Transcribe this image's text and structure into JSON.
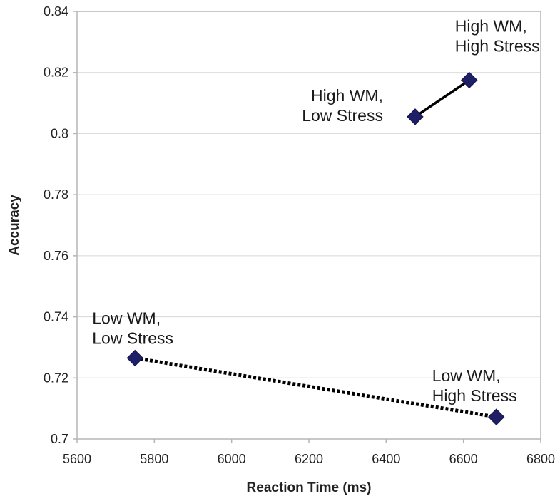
{
  "chart_data": {
    "type": "scatter",
    "title": "",
    "xlabel": "Reaction Time (ms)",
    "ylabel": "Accuracy",
    "xlim": [
      5600,
      6800
    ],
    "ylim": [
      0.7,
      0.84
    ],
    "x_ticks": [
      5600,
      5800,
      6000,
      6200,
      6400,
      6600,
      6800
    ],
    "x_tick_labels": [
      "5600",
      "5800",
      "6000",
      "6200",
      "6400",
      "6600",
      "6800"
    ],
    "y_ticks": [
      0.7,
      0.72,
      0.74,
      0.76,
      0.78,
      0.8,
      0.82,
      0.84
    ],
    "y_tick_labels": [
      "0.7",
      "0.72",
      "0.74",
      "0.76",
      "0.78",
      "0.8",
      "0.82",
      "0.84"
    ],
    "grid": "horizontal",
    "marker": "diamond",
    "marker_color": "#1e1f66",
    "series": [
      {
        "line_style": "solid",
        "line_color": "#000000",
        "points": [
          {
            "x": 6475,
            "y": 0.8055,
            "label": [
              "High WM,",
              "Low Stress"
            ]
          },
          {
            "x": 6615,
            "y": 0.8175,
            "label": [
              "High WM,",
              "High Stress"
            ]
          }
        ]
      },
      {
        "line_style": "dotted",
        "line_color": "#000000",
        "points": [
          {
            "x": 5750,
            "y": 0.7265,
            "label": [
              "Low WM,",
              "Low Stress"
            ]
          },
          {
            "x": 6685,
            "y": 0.7072,
            "label": [
              "Low WM,",
              "High Stress"
            ]
          }
        ]
      }
    ]
  }
}
